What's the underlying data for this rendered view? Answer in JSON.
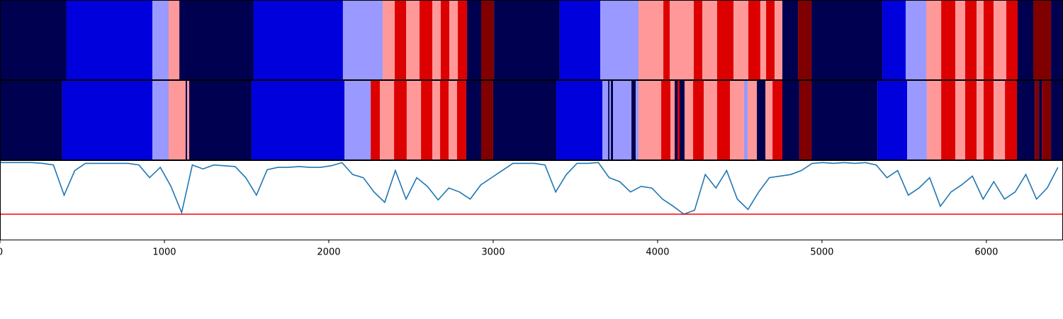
{
  "chart_data": [
    {
      "type": "segments",
      "xlim": [
        0,
        6466
      ],
      "palette": [
        "#000050",
        "#0000dd",
        "#9999ff",
        "#ff9999",
        "#dd0000",
        "#800000"
      ],
      "edges": [
        0,
        405,
        927,
        1026,
        1091,
        1543,
        2086,
        2328,
        2401,
        2470,
        2552,
        2630,
        2681,
        2733,
        2785,
        2841,
        2927,
        3005,
        3405,
        3651,
        3884,
        4035,
        4074,
        4220,
        4272,
        4362,
        4462,
        4552,
        4625,
        4660,
        4712,
        4759,
        4854,
        4936,
        5367,
        5509,
        5634,
        5725,
        5811,
        5871,
        5940,
        5983,
        6044,
        6121,
        6190,
        6285,
        6393,
        6466
      ],
      "states": [
        0,
        1,
        2,
        3,
        0,
        1,
        2,
        3,
        4,
        3,
        4,
        3,
        4,
        3,
        4,
        0,
        5,
        0,
        1,
        2,
        3,
        4,
        3,
        4,
        3,
        4,
        3,
        4,
        3,
        4,
        3,
        0,
        5,
        0,
        1,
        2,
        3,
        4,
        3,
        4,
        3,
        4,
        3,
        4,
        0,
        5,
        0
      ]
    },
    {
      "type": "segments",
      "xlim": [
        0,
        6466
      ],
      "palette": [
        "#000050",
        "#0000dd",
        "#9999ff",
        "#ff9999",
        "#dd0000",
        "#800000"
      ],
      "edges": [
        0,
        379,
        927,
        1026,
        1129,
        1138,
        1151,
        1530,
        2095,
        2255,
        2311,
        2397,
        2474,
        2561,
        2630,
        2677,
        2729,
        2780,
        2836,
        2927,
        3000,
        3384,
        3664,
        3699,
        3707,
        3716,
        3729,
        3841,
        3867,
        3884,
        4022,
        4078,
        4104,
        4121,
        4134,
        4164,
        4216,
        4281,
        4362,
        4440,
        4526,
        4548,
        4604,
        4656,
        4699,
        4759,
        4862,
        4936,
        5337,
        5518,
        5638,
        5725,
        5811,
        5871,
        5940,
        5983,
        6044,
        6113,
        6186,
        6294,
        6320,
        6337,
        6393,
        6466
      ],
      "states": [
        0,
        1,
        2,
        3,
        0,
        3,
        0,
        1,
        2,
        4,
        3,
        4,
        3,
        4,
        3,
        4,
        3,
        4,
        0,
        5,
        0,
        1,
        2,
        0,
        2,
        0,
        2,
        0,
        2,
        3,
        4,
        3,
        0,
        4,
        0,
        3,
        4,
        3,
        4,
        3,
        2,
        3,
        0,
        3,
        4,
        0,
        5,
        0,
        1,
        2,
        3,
        4,
        3,
        4,
        3,
        4,
        3,
        4,
        0,
        5,
        0,
        5,
        0
      ]
    },
    {
      "type": "line",
      "xlim": [
        0,
        6466
      ],
      "ylim": [
        0,
        1
      ],
      "xticks": [
        0,
        1000,
        2000,
        3000,
        4000,
        5000,
        6000
      ],
      "threshold": 0.32,
      "threshold_color": "#ff0000",
      "series": [
        {
          "color": "#1f77b4",
          "x": [
            0,
            65,
            130,
            195,
            260,
            325,
            390,
            455,
            520,
            585,
            650,
            715,
            780,
            845,
            910,
            975,
            1040,
            1105,
            1170,
            1235,
            1300,
            1365,
            1430,
            1495,
            1560,
            1625,
            1690,
            1755,
            1820,
            1885,
            1950,
            2015,
            2080,
            2145,
            2210,
            2275,
            2340,
            2405,
            2470,
            2535,
            2600,
            2665,
            2730,
            2795,
            2860,
            2925,
            2990,
            3055,
            3120,
            3185,
            3250,
            3315,
            3380,
            3445,
            3510,
            3575,
            3640,
            3705,
            3770,
            3835,
            3900,
            3965,
            4030,
            4095,
            4160,
            4225,
            4290,
            4355,
            4420,
            4485,
            4550,
            4615,
            4680,
            4745,
            4810,
            4875,
            4940,
            5005,
            5070,
            5135,
            5200,
            5265,
            5330,
            5395,
            5460,
            5525,
            5590,
            5655,
            5720,
            5785,
            5850,
            5915,
            5980,
            6045,
            6110,
            6175,
            6240,
            6305,
            6370,
            6435
          ],
          "values": [
            0.97,
            0.97,
            0.97,
            0.97,
            0.96,
            0.94,
            0.56,
            0.87,
            0.96,
            0.96,
            0.96,
            0.96,
            0.96,
            0.94,
            0.78,
            0.91,
            0.67,
            0.34,
            0.94,
            0.89,
            0.94,
            0.93,
            0.92,
            0.78,
            0.56,
            0.88,
            0.91,
            0.91,
            0.92,
            0.91,
            0.91,
            0.93,
            0.97,
            0.82,
            0.78,
            0.6,
            0.47,
            0.87,
            0.51,
            0.78,
            0.67,
            0.5,
            0.65,
            0.6,
            0.51,
            0.69,
            0.78,
            0.87,
            0.96,
            0.96,
            0.96,
            0.94,
            0.6,
            0.82,
            0.96,
            0.96,
            0.97,
            0.78,
            0.73,
            0.6,
            0.67,
            0.65,
            0.51,
            0.42,
            0.32,
            0.37,
            0.82,
            0.65,
            0.87,
            0.51,
            0.38,
            0.6,
            0.78,
            0.8,
            0.82,
            0.87,
            0.96,
            0.97,
            0.96,
            0.97,
            0.96,
            0.97,
            0.94,
            0.78,
            0.87,
            0.56,
            0.65,
            0.78,
            0.42,
            0.6,
            0.69,
            0.8,
            0.51,
            0.73,
            0.51,
            0.6,
            0.82,
            0.51,
            0.65,
            0.91
          ]
        }
      ]
    }
  ]
}
